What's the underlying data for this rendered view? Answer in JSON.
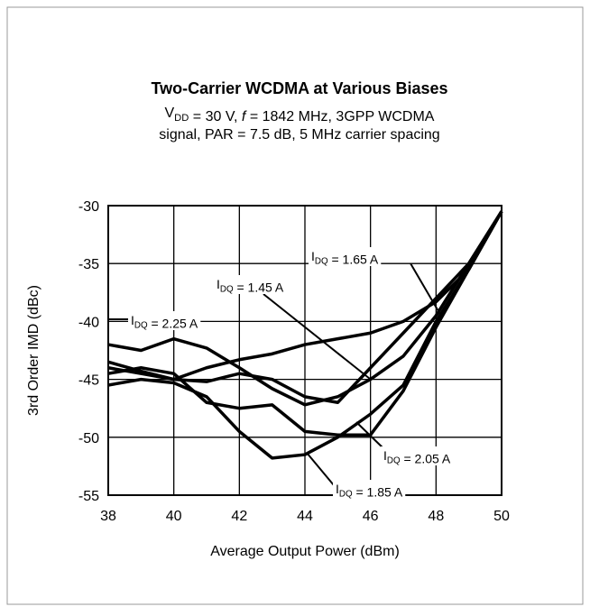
{
  "chart_data": {
    "type": "line",
    "title": "Two-Carrier WCDMA at Various Biases",
    "subtitle": [
      [
        {
          "t": "V"
        },
        {
          "sub": "DD"
        },
        {
          "t": " =  30 V, "
        },
        {
          "i": "f"
        },
        {
          "t": " = 1842 MHz, 3GPP WCDMA"
        }
      ],
      [
        {
          "t": "signal, PAR = 7.5 dB, 5 MHz carrier spacing"
        }
      ]
    ],
    "x_label": "Average Output Power (dBm)",
    "y_label": "3rd Order IMD (dBc)",
    "x": [
      38,
      39,
      40,
      41,
      42,
      43,
      44,
      45,
      46,
      47,
      48,
      49,
      50
    ],
    "xlim": [
      38,
      50
    ],
    "xticks": [
      38,
      40,
      42,
      44,
      46,
      48,
      50
    ],
    "ylim": [
      -55,
      -30
    ],
    "yticks": [
      -55,
      -50,
      -45,
      -40,
      -35,
      -30
    ],
    "grid": true,
    "series": [
      {
        "label": [
          {
            "t": "I"
          },
          {
            "sub": "DQ"
          },
          {
            "t": " = 1.65 A"
          }
        ],
        "color": "#000000",
        "values": [
          -44,
          -44.5,
          -45,
          -44,
          -43.3,
          -42.8,
          -42,
          -41.5,
          -41,
          -40,
          -38.3,
          -35.5,
          -30.5
        ]
      },
      {
        "label": [
          {
            "t": "I"
          },
          {
            "sub": "DQ"
          },
          {
            "t": " = 1.45 A"
          }
        ],
        "color": "#000000",
        "values": [
          -43.5,
          -44.3,
          -45,
          -45.2,
          -44.5,
          -45,
          -46.5,
          -47,
          -44,
          -41,
          -38,
          -35,
          -30.5
        ]
      },
      {
        "label": [
          {
            "t": "I"
          },
          {
            "sub": "DQ"
          },
          {
            "t": " = 2.25 A"
          }
        ],
        "color": "#000000",
        "values": [
          -42,
          -42.5,
          -41.5,
          -42.3,
          -44,
          -45.8,
          -47.2,
          -46.5,
          -45,
          -43,
          -39.5,
          -35,
          -30.5
        ]
      },
      {
        "label": [
          {
            "t": "I"
          },
          {
            "sub": "DQ"
          },
          {
            "t": " = 2.05 A"
          }
        ],
        "color": "#000000",
        "values": [
          -44.5,
          -44,
          -44.5,
          -47,
          -47.5,
          -47.2,
          -49.5,
          -49.8,
          -49.8,
          -46,
          -40.5,
          -35.5,
          -30.5
        ]
      },
      {
        "label": [
          {
            "t": "I"
          },
          {
            "sub": "DQ"
          },
          {
            "t": " = 1.85 A"
          }
        ],
        "color": "#000000",
        "values": [
          -45.5,
          -45,
          -45.3,
          -46.5,
          -49.5,
          -51.8,
          -51.5,
          -50,
          -48,
          -45.5,
          -40,
          -35.5,
          -30.5
        ]
      }
    ]
  }
}
